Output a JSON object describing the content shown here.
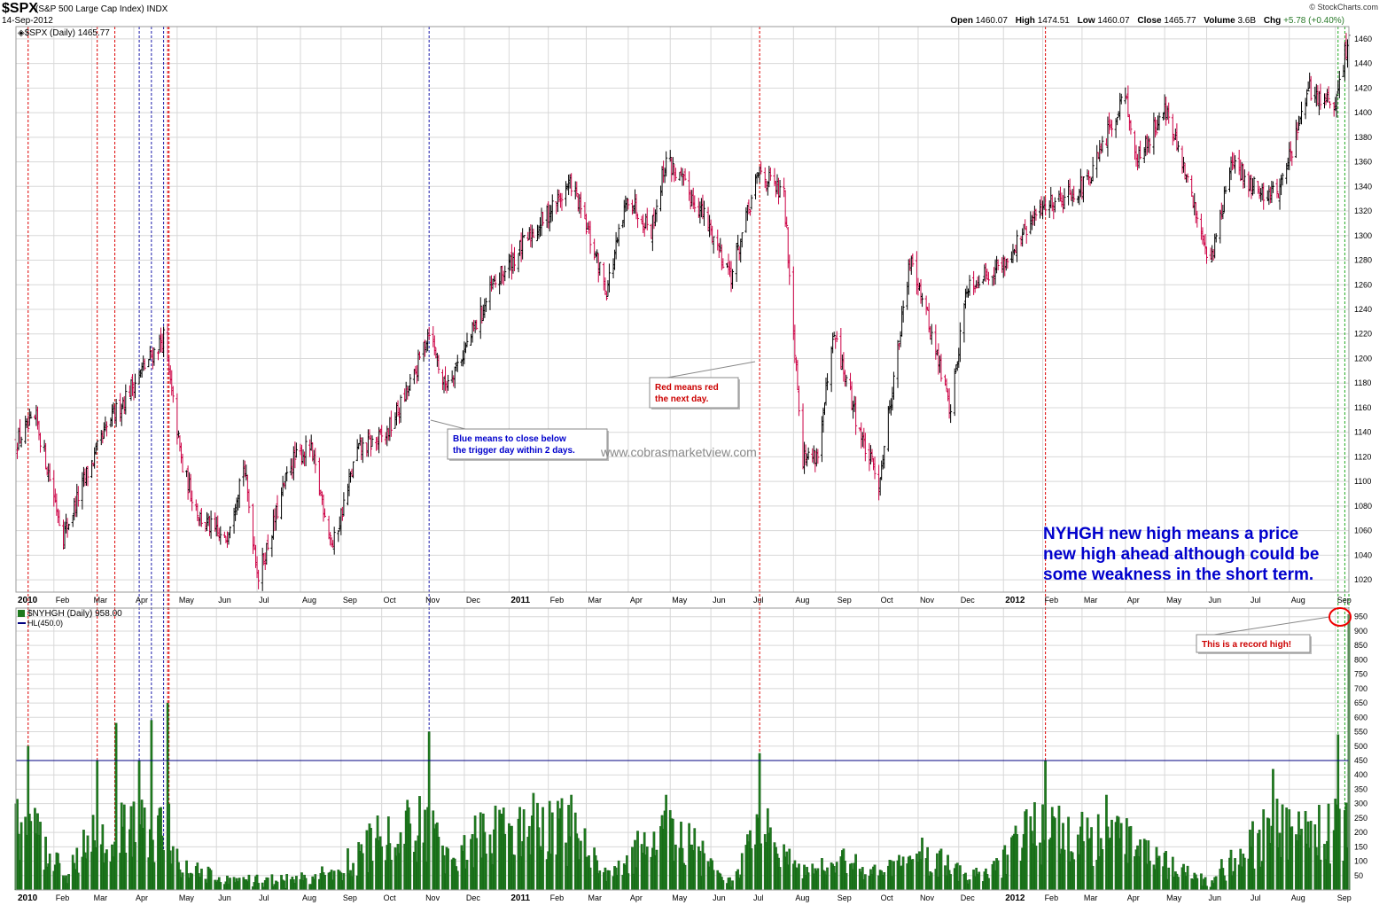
{
  "header": {
    "symbol": "$SPX",
    "description": "(S&P 500 Large Cap Index) INDX",
    "date": "14-Sep-2012",
    "copyright": "© StockCharts.com",
    "open_label": "Open",
    "open": "1460.07",
    "high_label": "High",
    "high": "1474.51",
    "low_label": "Low",
    "low": "1460.07",
    "close_label": "Close",
    "close": "1465.77",
    "volume_label": "Volume",
    "volume": "3.6B",
    "chg_label": "Chg",
    "chg": "+5.78 (+0.40%)"
  },
  "colors": {
    "up_bar": "#000000",
    "down_bar": "#cc0044",
    "volume_bar": "#1e7a1e",
    "red_line": "#dd0000",
    "blue_line": "#1a1aaa",
    "green_line": "#22aa22",
    "hl_line": "#000080",
    "text_blue": "#0000cc",
    "text_red": "#cc0000",
    "grid": "#d8d8d8"
  },
  "chart_data": [
    {
      "type": "line",
      "title": "$SPX (Daily) 1465.77",
      "series": [
        {
          "name": "$SPX (Daily) 1465.77",
          "x": [
            "2010-01-04",
            "2010-01-19",
            "2010-02-08",
            "2010-02-25",
            "2010-03-15",
            "2010-04-05",
            "2010-04-23",
            "2010-05-07",
            "2010-05-20",
            "2010-06-07",
            "2010-06-21",
            "2010-07-02",
            "2010-07-26",
            "2010-08-09",
            "2010-08-26",
            "2010-09-13",
            "2010-10-04",
            "2010-10-25",
            "2010-11-05",
            "2010-11-16",
            "2010-12-01",
            "2010-12-22",
            "2011-01-14",
            "2011-02-18",
            "2011-03-16",
            "2011-04-01",
            "2011-04-18",
            "2011-04-29",
            "2011-05-25",
            "2011-06-16",
            "2011-07-07",
            "2011-07-25",
            "2011-08-08",
            "2011-08-19",
            "2011-08-31",
            "2011-09-22",
            "2011-10-03",
            "2011-10-27",
            "2011-11-25",
            "2011-12-07",
            "2012-01-03",
            "2012-02-01",
            "2012-03-06",
            "2012-04-02",
            "2012-04-10",
            "2012-05-01",
            "2012-06-04",
            "2012-06-19",
            "2012-07-12",
            "2012-07-25",
            "2012-08-16",
            "2012-09-04",
            "2012-09-14"
          ],
          "y": [
            1132,
            1150,
            1056,
            1105,
            1150,
            1187,
            1217,
            1110,
            1071,
            1050,
            1114,
            1022,
            1115,
            1128,
            1047,
            1125,
            1137,
            1185,
            1225,
            1178,
            1206,
            1258,
            1293,
            1343,
            1256,
            1332,
            1305,
            1363,
            1320,
            1268,
            1353,
            1331,
            1119,
            1123,
            1218,
            1129,
            1099,
            1285,
            1158,
            1260,
            1277,
            1324,
            1343,
            1419,
            1358,
            1405,
            1278,
            1357,
            1334,
            1338,
            1418,
            1404,
            1465
          ]
        }
      ],
      "ylim": [
        1010,
        1470
      ],
      "yticks": [
        1020,
        1040,
        1060,
        1080,
        1100,
        1120,
        1140,
        1160,
        1180,
        1200,
        1220,
        1240,
        1260,
        1280,
        1300,
        1320,
        1340,
        1360,
        1380,
        1400,
        1420,
        1440,
        1460
      ],
      "xticks": [
        {
          "label": "2010",
          "date": "2010-01-04",
          "bold": true
        },
        {
          "label": "Feb",
          "date": "2010-02-01"
        },
        {
          "label": "Mar",
          "date": "2010-03-01"
        },
        {
          "label": "Apr",
          "date": "2010-04-01"
        },
        {
          "label": "May",
          "date": "2010-05-03"
        },
        {
          "label": "Jun",
          "date": "2010-06-01"
        },
        {
          "label": "Jul",
          "date": "2010-07-01"
        },
        {
          "label": "Aug",
          "date": "2010-08-02"
        },
        {
          "label": "Sep",
          "date": "2010-09-01"
        },
        {
          "label": "Oct",
          "date": "2010-10-01"
        },
        {
          "label": "Nov",
          "date": "2010-11-01"
        },
        {
          "label": "Dec",
          "date": "2010-12-01"
        },
        {
          "label": "2011",
          "date": "2011-01-03",
          "bold": true
        },
        {
          "label": "Feb",
          "date": "2011-02-01"
        },
        {
          "label": "Mar",
          "date": "2011-03-01"
        },
        {
          "label": "Apr",
          "date": "2011-04-01"
        },
        {
          "label": "May",
          "date": "2011-05-02"
        },
        {
          "label": "Jun",
          "date": "2011-06-01"
        },
        {
          "label": "Jul",
          "date": "2011-07-01"
        },
        {
          "label": "Aug",
          "date": "2011-08-01"
        },
        {
          "label": "Sep",
          "date": "2011-09-01"
        },
        {
          "label": "Oct",
          "date": "2011-10-03"
        },
        {
          "label": "Nov",
          "date": "2011-11-01"
        },
        {
          "label": "Dec",
          "date": "2011-12-01"
        },
        {
          "label": "2012",
          "date": "2012-01-03",
          "bold": true
        },
        {
          "label": "Feb",
          "date": "2012-02-01"
        },
        {
          "label": "Mar",
          "date": "2012-03-01"
        },
        {
          "label": "Apr",
          "date": "2012-04-02"
        },
        {
          "label": "May",
          "date": "2012-05-01"
        },
        {
          "label": "Jun",
          "date": "2012-06-01"
        },
        {
          "label": "Jul",
          "date": "2012-07-02"
        },
        {
          "label": "Aug",
          "date": "2012-08-01"
        },
        {
          "label": "Sep",
          "date": "2012-09-04"
        }
      ],
      "grid": true
    },
    {
      "type": "bar",
      "title": "$NYHGH (Daily) 958.00",
      "hl_label": "HL(450.0)",
      "hl_value": 450,
      "series": [
        {
          "name": "$NYHGH (Daily) 958.00",
          "x": [
            "2010-01-04",
            "2010-01-13",
            "2010-02-08",
            "2010-03-05",
            "2010-03-19",
            "2010-04-05",
            "2010-04-14",
            "2010-04-26",
            "2010-05-07",
            "2010-06-07",
            "2010-07-06",
            "2010-08-09",
            "2010-09-01",
            "2010-09-27",
            "2010-11-05",
            "2010-11-16",
            "2010-12-10",
            "2011-01-14",
            "2011-02-18",
            "2011-03-16",
            "2011-04-29",
            "2011-06-16",
            "2011-07-07",
            "2011-08-08",
            "2011-09-12",
            "2011-10-03",
            "2011-11-07",
            "2011-12-19",
            "2012-01-20",
            "2012-02-03",
            "2012-03-19",
            "2012-04-10",
            "2012-06-04",
            "2012-06-22",
            "2012-07-20",
            "2012-08-17",
            "2012-09-06",
            "2012-09-14"
          ],
          "y": [
            300,
            500,
            50,
            450,
            580,
            450,
            590,
            650,
            60,
            20,
            10,
            20,
            60,
            180,
            550,
            120,
            180,
            280,
            330,
            30,
            330,
            10,
            475,
            40,
            90,
            50,
            110,
            30,
            280,
            450,
            330,
            140,
            10,
            110,
            420,
            240,
            540,
            958
          ]
        }
      ],
      "ylim": [
        0,
        980
      ],
      "yticks": [
        50,
        100,
        150,
        200,
        250,
        300,
        350,
        400,
        450,
        500,
        550,
        600,
        650,
        700,
        750,
        800,
        850,
        900,
        950
      ]
    }
  ],
  "signal_lines": [
    {
      "date": "2010-01-13",
      "color": "red"
    },
    {
      "date": "2010-03-05",
      "color": "red"
    },
    {
      "date": "2010-03-18",
      "color": "red"
    },
    {
      "date": "2010-04-05",
      "color": "blue"
    },
    {
      "date": "2010-04-14",
      "color": "blue"
    },
    {
      "date": "2010-04-23",
      "color": "blue"
    },
    {
      "date": "2010-04-26",
      "color": "red"
    },
    {
      "date": "2010-04-27",
      "color": "red"
    },
    {
      "date": "2010-11-05",
      "color": "blue"
    },
    {
      "date": "2011-07-07",
      "color": "red"
    },
    {
      "date": "2012-02-03",
      "color": "red"
    },
    {
      "date": "2012-09-06",
      "color": "green"
    },
    {
      "date": "2012-09-11",
      "color": "green"
    },
    {
      "date": "2012-09-14",
      "color": "green"
    }
  ],
  "annotations": {
    "blue_callout": "Blue means to close below the trigger day within 2 days.",
    "red_callout": "Red means red the next day.",
    "watermark": "www.cobrasmarketview.com",
    "big_note_line1": "NYHGH new high means a price",
    "big_note_line2": "new high ahead although could be",
    "big_note_line3": "some weakness in the short term.",
    "record_callout": "This is a record high!"
  }
}
